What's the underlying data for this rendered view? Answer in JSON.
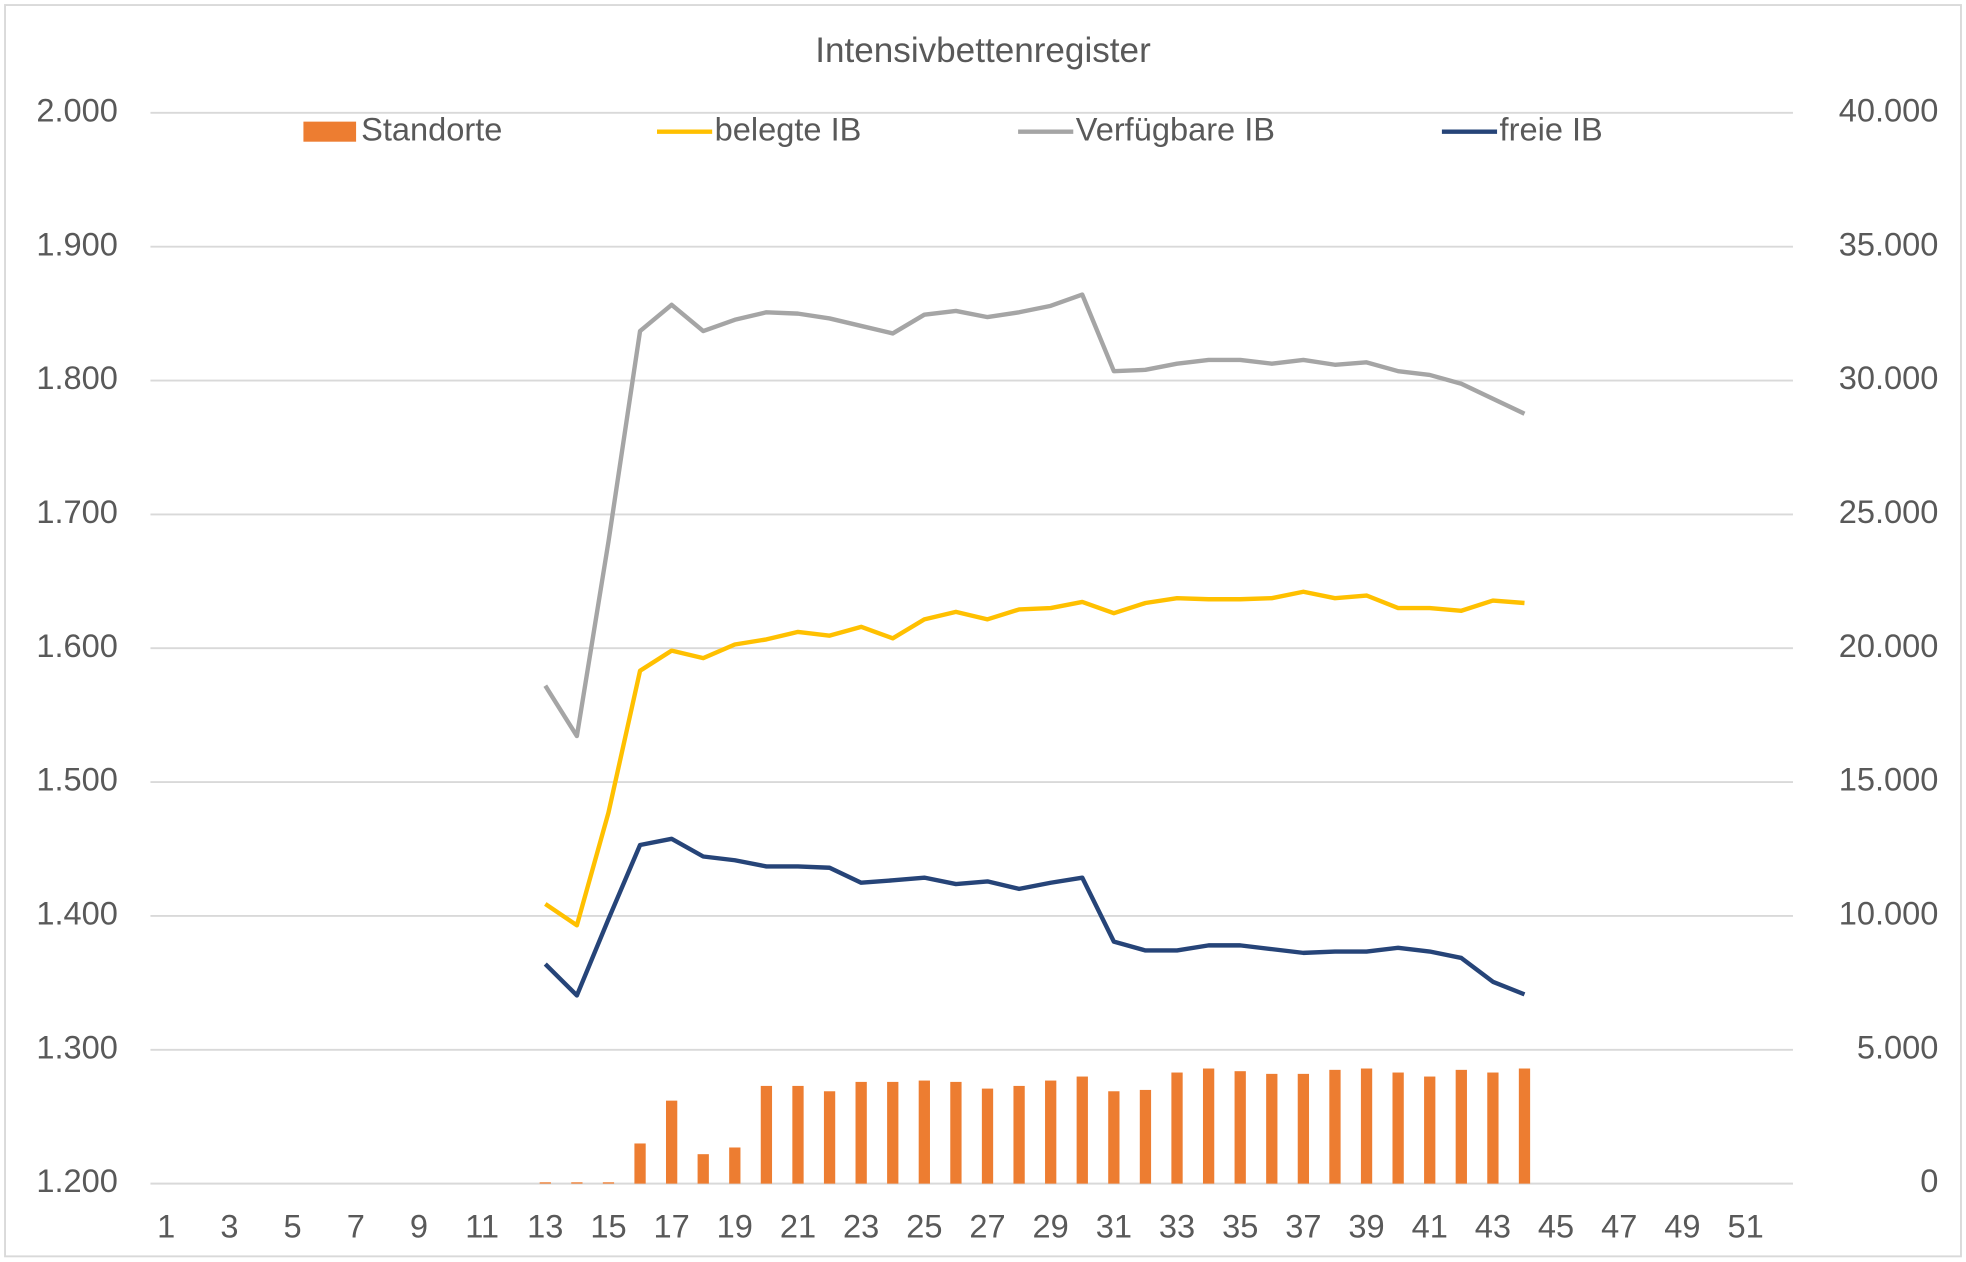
{
  "chart_data": {
    "type": "bar",
    "title": "Intensivbettenregister",
    "categories": [
      "1",
      null,
      "3",
      null,
      "5",
      null,
      "7",
      null,
      "9",
      null,
      "11",
      null,
      "13",
      null,
      "15",
      null,
      "17",
      null,
      "19",
      null,
      "21",
      null,
      "23",
      null,
      "25",
      null,
      "27",
      null,
      "29",
      null,
      "31",
      null,
      "33",
      null,
      "35",
      null,
      "37",
      null,
      "39",
      null,
      "41",
      null,
      "43",
      null,
      "45",
      null,
      "47",
      null,
      "49",
      null,
      "51",
      null
    ],
    "ylim": [
      1200,
      2000
    ],
    "yticks": [
      {
        "value": 1200,
        "label": "1.200"
      },
      {
        "value": 1300,
        "label": "1.300"
      },
      {
        "value": 1400,
        "label": "1.400"
      },
      {
        "value": 1500,
        "label": "1.500"
      },
      {
        "value": 1600,
        "label": "1.600"
      },
      {
        "value": 1700,
        "label": "1.700"
      },
      {
        "value": 1800,
        "label": "1.800"
      },
      {
        "value": 1900,
        "label": "1.900"
      },
      {
        "value": 2000,
        "label": "2.000"
      }
    ],
    "y2lim": [
      0,
      40000
    ],
    "y2ticks": [
      0,
      {
        "value": 5000,
        "label": "5.000"
      },
      {
        "value": 10000,
        "label": "10.000"
      },
      {
        "value": 15000,
        "label": "15.000"
      },
      {
        "value": 20000,
        "label": "20.000"
      },
      {
        "value": 25000,
        "label": "25.000"
      },
      {
        "value": 30000,
        "label": "30.000"
      },
      {
        "value": 35000,
        "label": "35.000"
      },
      {
        "value": 40000,
        "label": "40.000"
      }
    ],
    "grid": true,
    "legend": "top",
    "series": [
      {
        "name": "Standorte",
        "type": "bar",
        "color": "#ed7d31",
        "values": [
          null,
          null,
          null,
          null,
          null,
          null,
          null,
          null,
          null,
          null,
          null,
          null,
          1201,
          1201,
          1201,
          1230,
          1262,
          1222,
          1227,
          1273,
          1273,
          1269,
          1276,
          1276,
          1277,
          1276,
          1271,
          1273,
          1277,
          1280,
          1269,
          1270,
          1283,
          1286,
          1284,
          1282,
          1282,
          1285,
          1286,
          1283,
          1280,
          1285,
          1283,
          1286,
          null,
          null,
          null,
          null,
          null,
          null,
          null,
          null
        ]
      },
      {
        "name": "belegte IB",
        "type": "line",
        "axis": "y2",
        "color": "#ffc000",
        "values": [
          null,
          null,
          null,
          null,
          null,
          null,
          null,
          null,
          null,
          null,
          null,
          null,
          10450,
          9650,
          13860,
          19160,
          19910,
          19630,
          20140,
          20330,
          20610,
          20470,
          20800,
          20370,
          21080,
          21360,
          21080,
          21450,
          21500,
          21730,
          21310,
          21690,
          21870,
          21830,
          21830,
          21870,
          22110,
          21870,
          21970,
          21500,
          21500,
          21400,
          21780,
          21690,
          null,
          null,
          null,
          null,
          null,
          null,
          null,
          null
        ]
      },
      {
        "name": "Verfügbare IB",
        "type": "line",
        "axis": "y2",
        "color": "#a5a5a5",
        "values": [
          null,
          null,
          null,
          null,
          null,
          null,
          null,
          null,
          null,
          null,
          null,
          null,
          18600,
          16720,
          23980,
          31850,
          32830,
          31850,
          32270,
          32550,
          32500,
          32320,
          32040,
          31760,
          32460,
          32600,
          32370,
          32550,
          32790,
          33210,
          30350,
          30400,
          30630,
          30770,
          30770,
          30630,
          30770,
          30590,
          30680,
          30350,
          30210,
          29880,
          29320,
          28760,
          null,
          null,
          null,
          null,
          null,
          null,
          null,
          null
        ]
      },
      {
        "name": "freie IB",
        "type": "line",
        "axis": "y2",
        "color": "#264478",
        "values": [
          null,
          null,
          null,
          null,
          null,
          null,
          null,
          null,
          null,
          null,
          null,
          null,
          8200,
          7030,
          9880,
          12650,
          12880,
          12220,
          12080,
          11850,
          11850,
          11800,
          11240,
          11330,
          11430,
          11190,
          11290,
          11010,
          11240,
          11430,
          9040,
          8710,
          8710,
          8900,
          8900,
          8760,
          8620,
          8670,
          8670,
          8810,
          8670,
          8430,
          7540,
          7070,
          null,
          null,
          null,
          null,
          null,
          null,
          null,
          null
        ]
      }
    ]
  }
}
